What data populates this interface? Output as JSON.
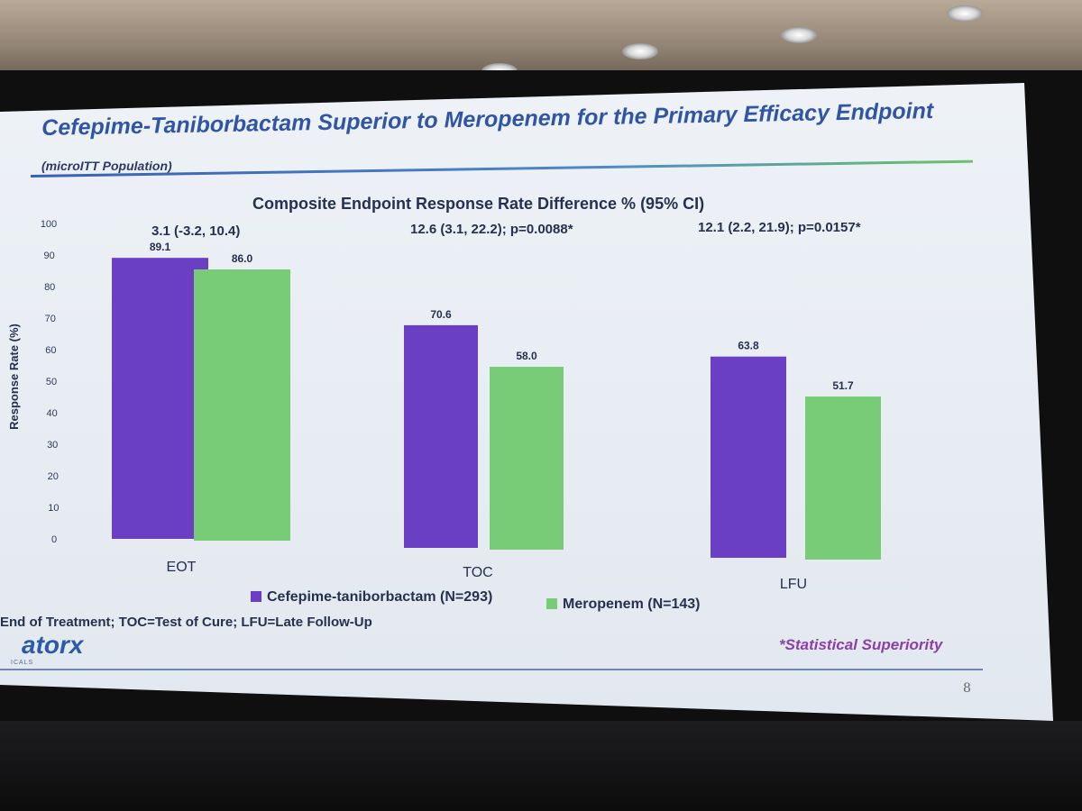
{
  "slide": {
    "title": "Cefepime-Taniborbactam Superior to Meropenem for the Primary Efficacy Endpoint",
    "subtitle": "(microITT Population)",
    "footnote": "End of Treatment; TOC=Test of Cure; LFU=Late Follow-Up",
    "superiority_note": "*Statistical Superiority",
    "logo_text": "atorx",
    "logo_subtext": "ICALS",
    "page_number": "8"
  },
  "colors": {
    "cefepime": "#6a3fc4",
    "meropenem": "#78cc78",
    "title": "#2f55a4",
    "text": "#26304f"
  },
  "chart_data": {
    "type": "bar",
    "title": "Composite Endpoint Response Rate Difference % (95% CI)",
    "ylabel": "Response Rate (%)",
    "xlabel": "",
    "ylim": [
      0,
      100
    ],
    "yticks": [
      0,
      10,
      20,
      30,
      40,
      50,
      60,
      70,
      80,
      90,
      100
    ],
    "categories": [
      "EOT",
      "TOC",
      "LFU"
    ],
    "differences": [
      "3.1 (-3.2, 10.4)",
      "12.6 (3.1, 22.2); p=0.0088*",
      "12.1 (2.2, 21.9); p=0.0157*"
    ],
    "series": [
      {
        "name": "Cefepime-taniborbactam (N=293)",
        "values": [
          89.1,
          70.6,
          63.8
        ],
        "labels": [
          "89.1",
          "70.6",
          "63.8"
        ]
      },
      {
        "name": "Meropenem (N=143)",
        "values": [
          86.0,
          58.0,
          51.7
        ],
        "labels": [
          "86.0",
          "58.0",
          "51.7"
        ]
      }
    ]
  }
}
